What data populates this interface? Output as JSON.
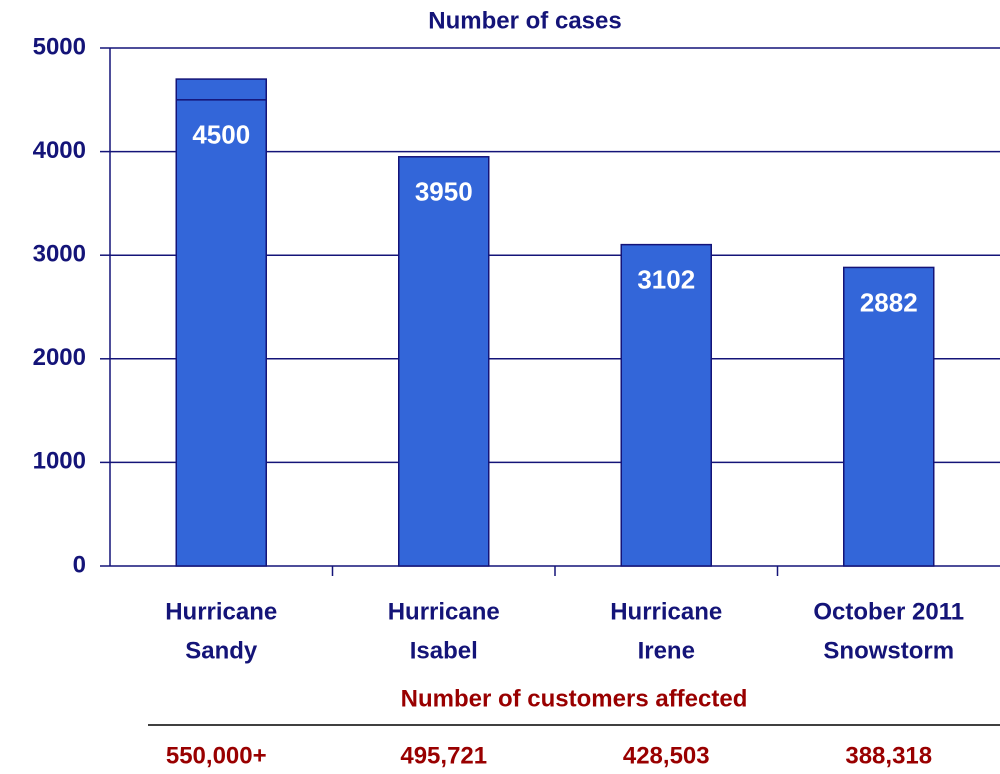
{
  "chart_data": {
    "type": "bar",
    "title": "Number of cases",
    "categories": [
      [
        "Hurricane",
        "Sandy"
      ],
      [
        "Hurricane",
        "Isabel"
      ],
      [
        "Hurricane",
        "Irene"
      ],
      [
        "October 2011",
        "Snowstorm"
      ]
    ],
    "series": [
      {
        "color": "#3366d9",
        "values": [
          4500,
          3950,
          3102,
          2882
        ],
        "show_labels": true
      },
      {
        "color": "#3366d9",
        "values": [
          200,
          null,
          null,
          null
        ],
        "show_labels": false
      }
    ],
    "stacked": true,
    "ylim": [
      0,
      5000
    ],
    "yticks": [
      0,
      1000,
      2000,
      3000,
      4000,
      5000
    ],
    "grid": true
  },
  "customers": {
    "title": "Number of customers affected",
    "values": [
      "550,000+",
      "495,721",
      "428,503",
      "388,318"
    ]
  }
}
